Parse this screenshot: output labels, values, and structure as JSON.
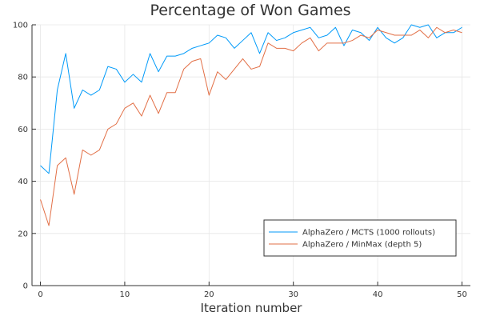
{
  "chart_data": {
    "type": "line",
    "title": "Percentage of Won Games",
    "xlabel": "Iteration number",
    "ylabel": "",
    "xlim": [
      -1,
      51
    ],
    "ylim": [
      0,
      100
    ],
    "xticks": [
      0,
      10,
      20,
      30,
      40,
      50
    ],
    "yticks": [
      0,
      20,
      40,
      60,
      80,
      100
    ],
    "grid": true,
    "legend_position": "bottom-right",
    "x": [
      0,
      1,
      2,
      3,
      4,
      5,
      6,
      7,
      8,
      9,
      10,
      11,
      12,
      13,
      14,
      15,
      16,
      17,
      18,
      19,
      20,
      21,
      22,
      23,
      24,
      25,
      26,
      27,
      28,
      29,
      30,
      31,
      32,
      33,
      34,
      35,
      36,
      37,
      38,
      39,
      40,
      41,
      42,
      43,
      44,
      45,
      46,
      47,
      48,
      49,
      50
    ],
    "series": [
      {
        "name": "AlphaZero  / MCTS (1000 rollouts)",
        "color": "#009af9",
        "values": [
          46,
          43,
          75,
          89,
          68,
          75,
          73,
          75,
          84,
          83,
          78,
          81,
          78,
          89,
          82,
          88,
          88,
          89,
          91,
          92,
          93,
          96,
          95,
          91,
          94,
          97,
          89,
          97,
          94,
          95,
          97,
          98,
          99,
          95,
          96,
          99,
          92,
          98,
          97,
          94,
          99,
          95,
          93,
          95,
          100,
          99,
          100,
          95,
          97,
          97,
          99
        ]
      },
      {
        "name": "AlphaZero  / MinMax (depth 5)",
        "color": "#e26f46",
        "values": [
          33,
          23,
          46,
          49,
          35,
          52,
          50,
          52,
          60,
          62,
          68,
          70,
          65,
          73,
          66,
          74,
          74,
          83,
          86,
          87,
          73,
          82,
          79,
          83,
          87,
          83,
          84,
          93,
          91,
          91,
          90,
          93,
          95,
          90,
          93,
          93,
          93,
          94,
          96,
          95,
          98,
          97,
          96,
          96,
          96,
          98,
          95,
          99,
          97,
          98,
          97
        ]
      }
    ]
  }
}
